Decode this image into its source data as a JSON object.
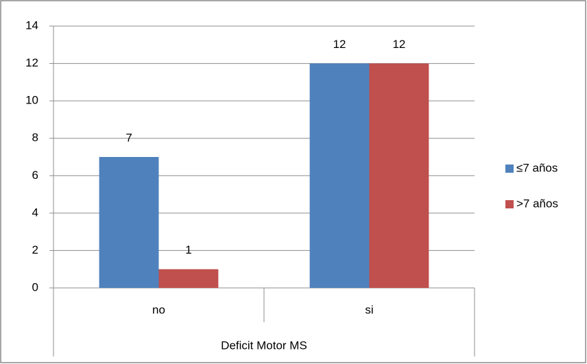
{
  "chart_data": {
    "type": "bar",
    "categories": [
      "no",
      "si"
    ],
    "xlabel": "Deficit Motor MS",
    "series": [
      {
        "name": "≤7 años",
        "color": "#4f81bd",
        "values": [
          7,
          12
        ]
      },
      {
        "name": ">7 años",
        "color": "#c0504d",
        "values": [
          1,
          12
        ]
      }
    ],
    "ylim": [
      0,
      14
    ],
    "yticks": [
      0,
      2,
      4,
      6,
      8,
      10,
      12,
      14
    ],
    "grid": true,
    "legend": "right",
    "data_labels": true
  }
}
